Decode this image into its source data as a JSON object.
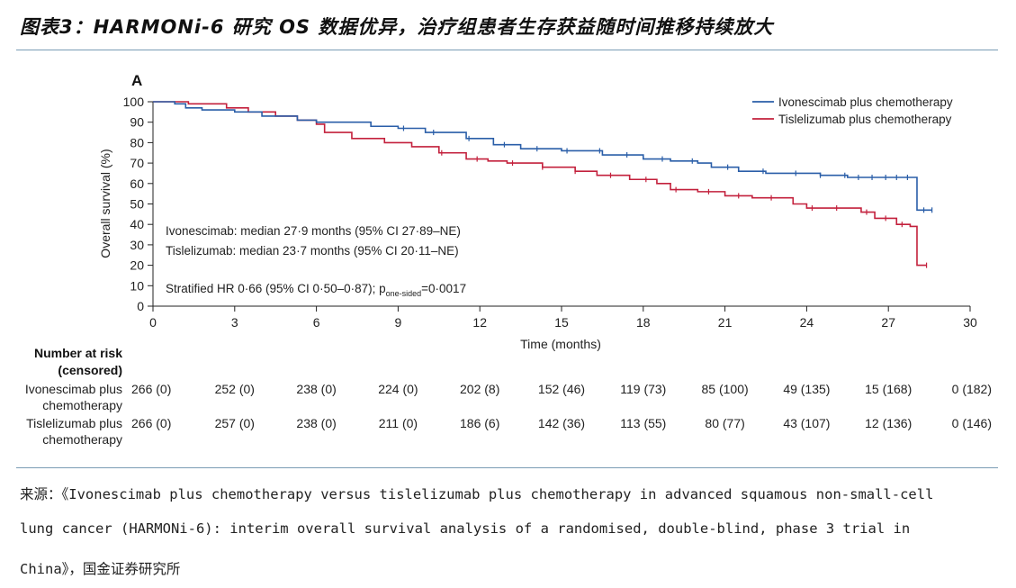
{
  "figure_title": "图表3：HARMONi-6 研究 OS 数据优异，治疗组患者生存获益随时间推移持续放大",
  "source_lines": [
    "来源：《Ivonescimab plus chemotherapy versus tislelizumab plus chemotherapy in advanced squamous non-small-cell",
    "lung cancer (HARMONi-6): interim overall survival analysis of a randomised, double-blind, phase 3 trial in",
    "China》，国金证券研究所"
  ],
  "colors": {
    "ivonescimab": "#2a5ea8",
    "tislelizumab": "#c3203c",
    "rule": "#7a9cb5"
  },
  "chart_data": {
    "type": "line",
    "panel_label": "A",
    "xlabel": "Time (months)",
    "ylabel": "Overall survival (%)",
    "xlim": [
      0,
      30
    ],
    "ylim": [
      0,
      100
    ],
    "xticks": [
      0,
      3,
      6,
      9,
      12,
      15,
      18,
      21,
      24,
      27,
      30
    ],
    "yticks": [
      0,
      10,
      20,
      30,
      40,
      50,
      60,
      70,
      80,
      90,
      100
    ],
    "legend_position": "top-right",
    "series": [
      {
        "name": "Ivonescimab plus chemotherapy",
        "color_key": "ivonescimab",
        "step_points": [
          [
            0,
            100
          ],
          [
            0.8,
            99
          ],
          [
            1.2,
            97
          ],
          [
            1.8,
            96
          ],
          [
            3,
            95
          ],
          [
            4,
            93
          ],
          [
            5.3,
            91
          ],
          [
            6,
            90
          ],
          [
            8,
            88
          ],
          [
            9,
            87
          ],
          [
            10,
            85
          ],
          [
            11.5,
            82
          ],
          [
            12.5,
            79
          ],
          [
            13.5,
            77
          ],
          [
            15,
            76
          ],
          [
            16.5,
            74
          ],
          [
            18,
            72
          ],
          [
            19,
            71
          ],
          [
            20,
            70
          ],
          [
            20.5,
            68
          ],
          [
            21.5,
            66
          ],
          [
            22.5,
            65
          ],
          [
            24.5,
            64
          ],
          [
            25.5,
            63
          ],
          [
            28,
            63
          ],
          [
            28.05,
            47
          ],
          [
            28.6,
            47
          ]
        ],
        "censor_x": [
          9.2,
          10.3,
          11.6,
          12.9,
          14.1,
          15.2,
          16.4,
          17.4,
          18.7,
          19.8,
          21.1,
          22.4,
          23.6,
          24.5,
          25.4,
          25.9,
          26.4,
          26.9,
          27.3,
          27.7,
          28.3,
          28.6
        ]
      },
      {
        "name": "Tislelizumab plus chemotherapy",
        "color_key": "tislelizumab",
        "step_points": [
          [
            0,
            100
          ],
          [
            1.3,
            99
          ],
          [
            2.7,
            97
          ],
          [
            3.5,
            95
          ],
          [
            4.5,
            93
          ],
          [
            5.3,
            91
          ],
          [
            6,
            89
          ],
          [
            6.3,
            85
          ],
          [
            7.3,
            82
          ],
          [
            8.5,
            80
          ],
          [
            9.5,
            78
          ],
          [
            10.5,
            75
          ],
          [
            11.5,
            72
          ],
          [
            12.3,
            71
          ],
          [
            13,
            70
          ],
          [
            14.3,
            68
          ],
          [
            15.5,
            66
          ],
          [
            16.3,
            64
          ],
          [
            17.5,
            62
          ],
          [
            18.5,
            60
          ],
          [
            19,
            57
          ],
          [
            20,
            56
          ],
          [
            21,
            54
          ],
          [
            22,
            53
          ],
          [
            23.5,
            50
          ],
          [
            24,
            48
          ],
          [
            25.5,
            48
          ],
          [
            26,
            46
          ],
          [
            26.5,
            43
          ],
          [
            27.3,
            40
          ],
          [
            27.8,
            39
          ],
          [
            28.05,
            20
          ],
          [
            28.4,
            20
          ]
        ],
        "censor_x": [
          10.6,
          11.9,
          13.2,
          14.3,
          15.5,
          16.8,
          18.1,
          19.2,
          20.4,
          21.5,
          22.7,
          24.2,
          25.1,
          26.2,
          26.9,
          27.5,
          28.4
        ]
      }
    ],
    "annotations": [
      "Ivonescimab: median 27·9 months (95% CI 27·89–NE)",
      "Tislelizumab: median 23·7 months (95% CI 20·11–NE)"
    ],
    "hr_text": "Stratified HR 0·66 (95% CI 0·50–0·87); p",
    "p_subscript": "one-sided",
    "p_value_text": "=0·0017",
    "risk_table": {
      "header": [
        "Number at risk",
        "(censored)"
      ],
      "times": [
        0,
        3,
        6,
        9,
        12,
        15,
        18,
        21,
        24,
        27,
        30
      ],
      "rows": [
        {
          "label": [
            "Ivonescimab plus",
            "chemotherapy"
          ],
          "values": [
            "266 (0)",
            "252 (0)",
            "238 (0)",
            "224 (0)",
            "202 (8)",
            "152 (46)",
            "119 (73)",
            "85 (100)",
            "49 (135)",
            "15 (168)",
            "0 (182)"
          ]
        },
        {
          "label": [
            "Tislelizumab plus",
            "chemotherapy"
          ],
          "values": [
            "266 (0)",
            "257 (0)",
            "238 (0)",
            "211 (0)",
            "186 (6)",
            "142 (36)",
            "113 (55)",
            "80 (77)",
            "43 (107)",
            "12 (136)",
            "0 (146)"
          ]
        }
      ]
    }
  }
}
